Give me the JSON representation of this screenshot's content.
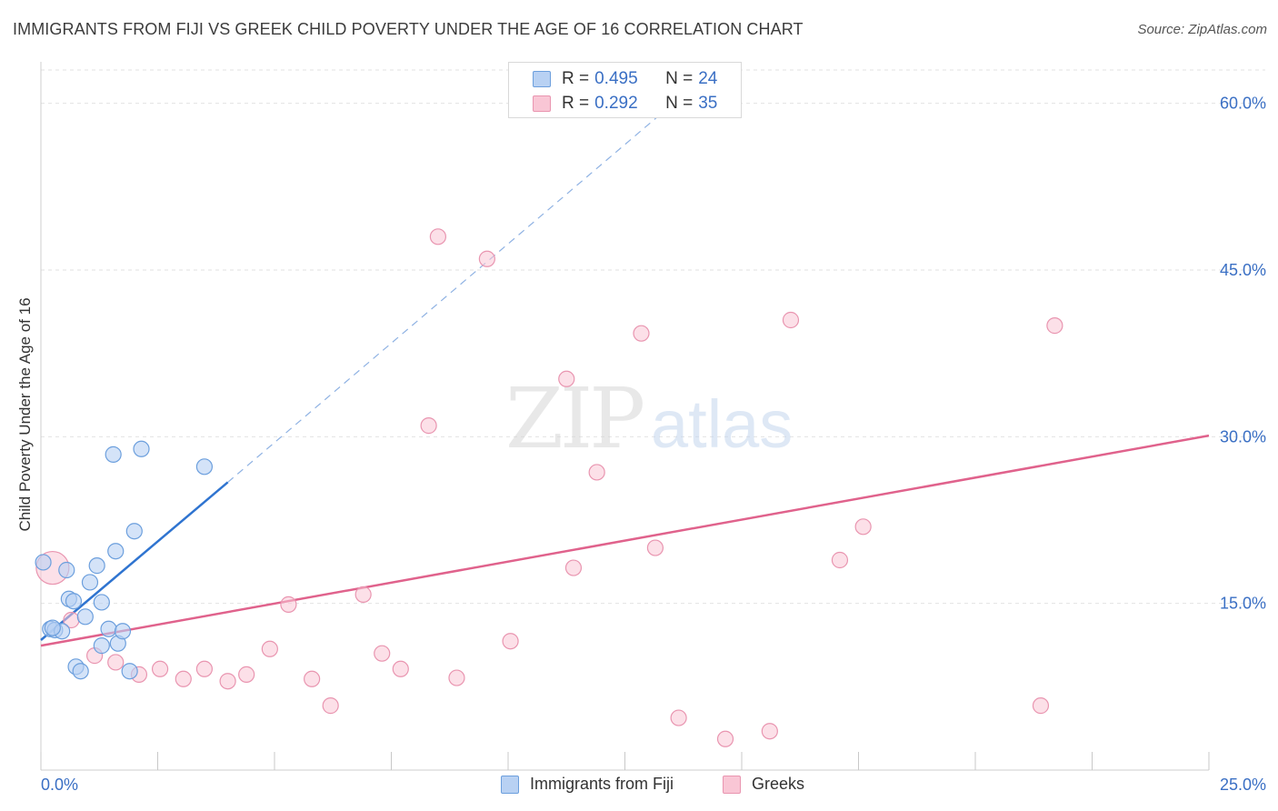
{
  "title": "IMMIGRANTS FROM FIJI VS GREEK CHILD POVERTY UNDER THE AGE OF 16 CORRELATION CHART",
  "source": "Source: ZipAtlas.com",
  "watermark": {
    "zip": "ZIP",
    "atlas": "atlas"
  },
  "colors": {
    "fiji_fill": "#b8d1f3",
    "fiji_stroke": "#6c9fdd",
    "fiji_line": "#2f74d0",
    "greeks_fill": "#f9c6d5",
    "greeks_stroke": "#e995b0",
    "greeks_line": "#e0628c",
    "tick_label": "#3a6fc4",
    "grid": "#e2e2e2"
  },
  "legend": {
    "rows": [
      {
        "r_label": "R =",
        "r_value": "0.495",
        "n_label": "N =",
        "n_value": "24"
      },
      {
        "r_label": "R =",
        "r_value": "0.292",
        "n_label": "N =",
        "n_value": "35"
      }
    ]
  },
  "bottom_legend": {
    "series1": "Immigrants from Fiji",
    "series2": "Greeks"
  },
  "chart_data": {
    "type": "scatter",
    "title": "IMMIGRANTS FROM FIJI VS GREEK CHILD POVERTY UNDER THE AGE OF 16 CORRELATION CHART",
    "xlabel": "",
    "ylabel": "Child Poverty Under the Age of 16",
    "xlim": [
      0,
      25
    ],
    "ylim": [
      0,
      63
    ],
    "x_tick_labels": [
      "0.0%",
      "25.0%"
    ],
    "y_ticks": [
      15,
      30,
      45,
      60
    ],
    "y_tick_labels": [
      "15.0%",
      "30.0%",
      "45.0%",
      "60.0%"
    ],
    "grid": true,
    "legend_position": "top-center",
    "series": [
      {
        "name": "Immigrants from Fiji",
        "r": 0.495,
        "n": 24,
        "points": [
          [
            0.05,
            18.7
          ],
          [
            0.2,
            12.7
          ],
          [
            0.3,
            12.6
          ],
          [
            0.45,
            12.5
          ],
          [
            0.55,
            18.0
          ],
          [
            0.6,
            15.4
          ],
          [
            0.7,
            15.2
          ],
          [
            0.75,
            9.3
          ],
          [
            0.85,
            8.9
          ],
          [
            0.95,
            13.8
          ],
          [
            1.05,
            16.9
          ],
          [
            1.2,
            18.4
          ],
          [
            1.3,
            15.1
          ],
          [
            1.3,
            11.2
          ],
          [
            1.45,
            12.7
          ],
          [
            1.55,
            28.4
          ],
          [
            1.6,
            19.7
          ],
          [
            1.65,
            11.4
          ],
          [
            1.75,
            12.5
          ],
          [
            1.9,
            8.9
          ],
          [
            2.0,
            21.5
          ],
          [
            2.15,
            28.9
          ],
          [
            3.5,
            27.3
          ],
          [
            0.25,
            12.8
          ]
        ],
        "trend": {
          "x": [
            0.0,
            4.0
          ],
          "y": [
            11.7,
            25.9
          ]
        },
        "trend_extension": {
          "x": [
            4.0,
            13.2
          ],
          "y": [
            25.9,
            58.8
          ]
        }
      },
      {
        "name": "Greeks",
        "r": 0.292,
        "n": 35,
        "points": [
          [
            0.25,
            18.2
          ],
          [
            0.65,
            13.5
          ],
          [
            1.15,
            10.3
          ],
          [
            1.6,
            9.7
          ],
          [
            2.1,
            8.6
          ],
          [
            2.55,
            9.1
          ],
          [
            3.05,
            8.2
          ],
          [
            3.5,
            9.1
          ],
          [
            4.0,
            8.0
          ],
          [
            4.4,
            8.6
          ],
          [
            4.9,
            10.9
          ],
          [
            5.3,
            14.9
          ],
          [
            5.8,
            8.2
          ],
          [
            6.2,
            5.8
          ],
          [
            6.9,
            15.8
          ],
          [
            7.3,
            10.5
          ],
          [
            7.7,
            9.1
          ],
          [
            8.3,
            31.0
          ],
          [
            8.5,
            48.0
          ],
          [
            8.9,
            8.3
          ],
          [
            9.55,
            46.0
          ],
          [
            10.05,
            11.6
          ],
          [
            11.25,
            35.2
          ],
          [
            11.4,
            18.2
          ],
          [
            11.9,
            26.8
          ],
          [
            12.85,
            39.3
          ],
          [
            13.15,
            20.0
          ],
          [
            13.65,
            4.7
          ],
          [
            14.65,
            2.8
          ],
          [
            15.6,
            3.5
          ],
          [
            16.05,
            40.5
          ],
          [
            17.1,
            18.9
          ],
          [
            17.6,
            21.9
          ],
          [
            21.4,
            5.8
          ],
          [
            21.7,
            40.0
          ]
        ],
        "trend": {
          "x": [
            0.0,
            25.0
          ],
          "y": [
            11.2,
            30.1
          ]
        }
      }
    ]
  }
}
